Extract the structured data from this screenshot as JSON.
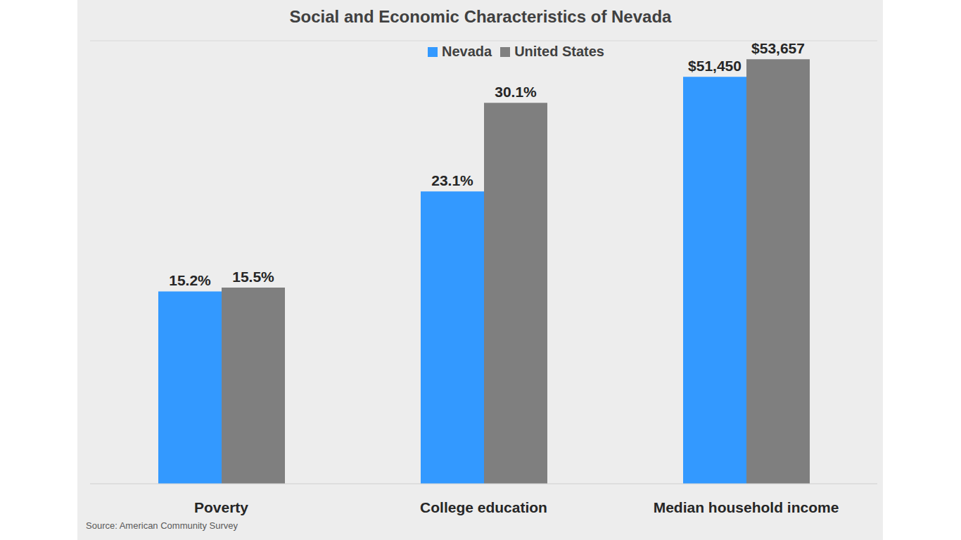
{
  "title": "Social and Economic Characteristics of Nevada",
  "source": "Source: American Community Survey",
  "chart_data": [
    {
      "type": "bar",
      "categories": [
        "Poverty"
      ],
      "series": [
        {
          "name": "Nevada",
          "color": "#3399ff",
          "values": [
            15.2
          ],
          "value_labels": [
            "15.2%"
          ]
        },
        {
          "name": "United States",
          "color": "#7f7f7f",
          "values": [
            15.5
          ],
          "value_labels": [
            "15.5%"
          ]
        }
      ],
      "ylim": [
        0,
        35
      ],
      "yticks": [
        0,
        5,
        10,
        15,
        20,
        25,
        30,
        35
      ],
      "grid": true,
      "data_labels": true,
      "tick_labels": "x"
    },
    {
      "type": "bar",
      "categories": [
        "College education"
      ],
      "series": [
        {
          "name": "Nevada",
          "color": "#3399ff",
          "values": [
            23.1
          ],
          "value_labels": [
            "23.1%"
          ]
        },
        {
          "name": "United States",
          "color": "#7f7f7f",
          "values": [
            30.1
          ],
          "value_labels": [
            "30.1%"
          ]
        }
      ],
      "ylim": [
        0,
        35
      ],
      "yticks": [
        0,
        5,
        10,
        15,
        20,
        25,
        30,
        35
      ],
      "grid": true,
      "data_labels": true,
      "tick_labels": "x"
    },
    {
      "type": "bar",
      "categories": [
        "Median household income"
      ],
      "series": [
        {
          "name": "Nevada",
          "color": "#3399ff",
          "values": [
            51450
          ],
          "value_labels": [
            "$51,450"
          ]
        },
        {
          "name": "United States",
          "color": "#7f7f7f",
          "values": [
            53657
          ],
          "value_labels": [
            "$53,657"
          ]
        }
      ],
      "ylim": [
        0,
        56000
      ],
      "yticks": [
        0,
        8000,
        16000,
        24000,
        32000,
        40000,
        48000,
        56000
      ],
      "grid": true,
      "data_labels": true,
      "tick_labels": "x"
    }
  ]
}
